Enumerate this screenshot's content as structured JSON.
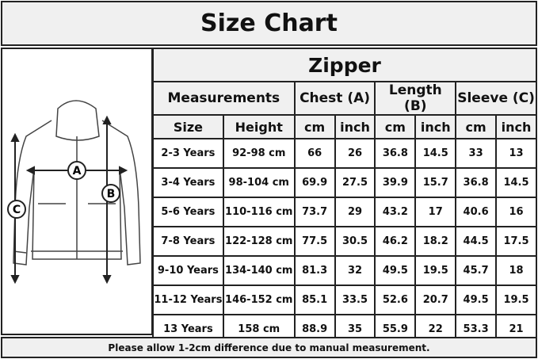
{
  "title": "Size Chart",
  "style": "Zipper",
  "groups": [
    "Measurements",
    "Chest (A)",
    "Length (B)",
    "Sleeve (C)"
  ],
  "subheaders": [
    "Size",
    "Height",
    "cm",
    "inch",
    "cm",
    "inch",
    "cm",
    "inch"
  ],
  "rows": [
    [
      "2-3 Years",
      "92-98 cm",
      "66",
      "26",
      "36.8",
      "14.5",
      "33",
      "13"
    ],
    [
      "3-4 Years",
      "98-104 cm",
      "69.9",
      "27.5",
      "39.9",
      "15.7",
      "36.8",
      "14.5"
    ],
    [
      "5-6 Years",
      "110-116 cm",
      "73.7",
      "29",
      "43.2",
      "17",
      "40.6",
      "16"
    ],
    [
      "7-8 Years",
      "122-128 cm",
      "77.5",
      "30.5",
      "46.2",
      "18.2",
      "44.5",
      "17.5"
    ],
    [
      "9-10 Years",
      "134-140 cm",
      "81.3",
      "32",
      "49.5",
      "19.5",
      "45.7",
      "18"
    ],
    [
      "11-12 Years",
      "146-152 cm",
      "85.1",
      "33.5",
      "52.6",
      "20.7",
      "49.5",
      "19.5"
    ],
    [
      "13 Years",
      "158 cm",
      "88.9",
      "35",
      "55.9",
      "22",
      "53.3",
      "21"
    ]
  ],
  "figure": {
    "labels": [
      "A",
      "B",
      "C"
    ]
  },
  "footer": "Please allow 1-2cm difference due to manual measurement."
}
